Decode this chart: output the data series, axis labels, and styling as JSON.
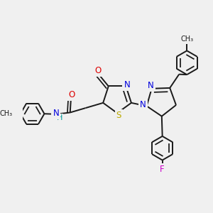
{
  "bg": "#f0f0f0",
  "bond_color": "#1a1a1a",
  "lw": 1.4,
  "atom_colors": {
    "N": "#0000dd",
    "O": "#dd0000",
    "S": "#bbaa00",
    "F": "#cc00cc",
    "H": "#009999"
  },
  "fs": 8.5
}
